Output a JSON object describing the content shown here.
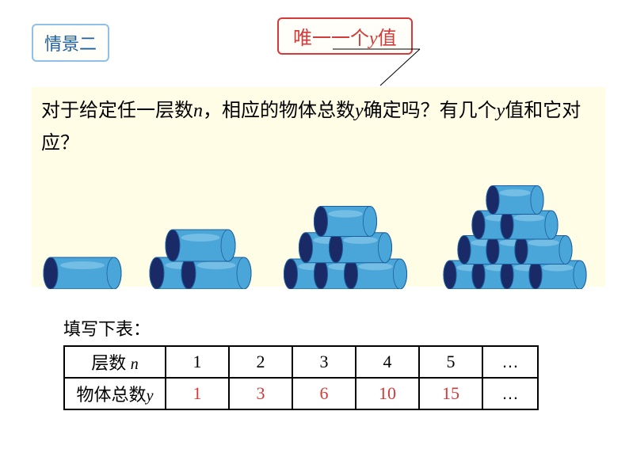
{
  "scenario_label": "情景二",
  "unique_label_cn1": "唯一一个",
  "unique_label_y": "y",
  "unique_label_cn2": "值",
  "question_p1": "对于给定任一层数",
  "question_n": "n",
  "question_p2": "，相应的物体总数",
  "question_y": "y",
  "question_p3": "确定吗？有几个",
  "question_y2": "y",
  "question_p4": "值和它对应？",
  "fill_label": "填写下表：",
  "table": {
    "row1_label_a": "层数 ",
    "row1_label_n": "n",
    "row2_label_a": "物体总数",
    "row2_label_y": "y",
    "cols": [
      "1",
      "2",
      "3",
      "4",
      "5",
      "…"
    ],
    "answers": [
      "1",
      "3",
      "6",
      "10",
      "15",
      "…"
    ]
  },
  "cylinder": {
    "body_fill": "#4aa6d8",
    "body_stroke": "#1b5f9e",
    "end_fill": "#1a2a66",
    "highlight": "#9ed4f0"
  }
}
